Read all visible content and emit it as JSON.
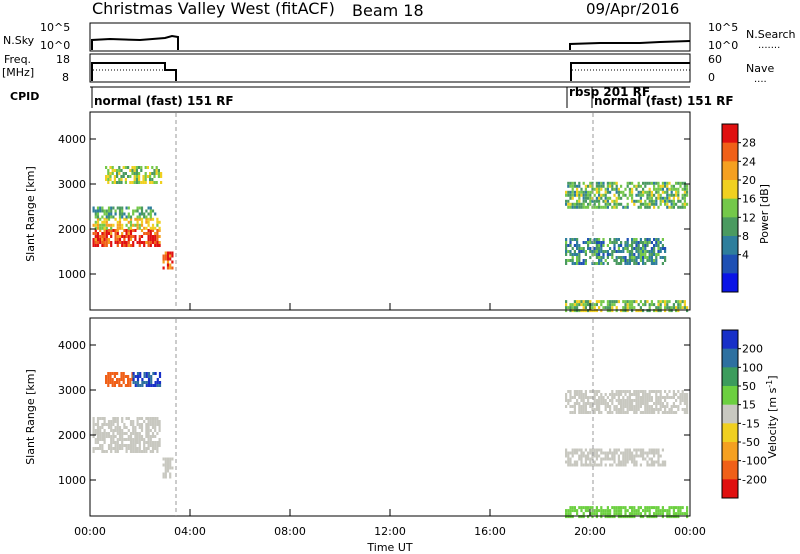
{
  "header": {
    "title": "Christmas Valley West (fitACF)",
    "beam": "Beam 18",
    "date": "09/Apr/2016"
  },
  "strip_labels": {
    "nsky": "N.Sky",
    "nsky_ticks": [
      "10^5",
      "10^0"
    ],
    "nsearch": "N.Search",
    "nsearch_ticks": [
      "10^5",
      "10^0"
    ],
    "freq_line1": "Freq.",
    "freq_line2": "[MHz]",
    "freq_ticks": [
      "18",
      "8"
    ],
    "nave": "Nave",
    "nave_ticks": [
      "60",
      "0"
    ],
    "cpid": "CPID"
  },
  "cpid_segments": [
    {
      "label": "normal (fast) 151 RF",
      "start_hour": 0
    },
    {
      "label": "rbsp 201 RF",
      "start_hour": 19
    },
    {
      "label": "normal (fast) 151 RF",
      "start_hour": 20
    }
  ],
  "chart_data": [
    {
      "type": "heatmap",
      "panel": "power",
      "ylabel": "Slant Range [km]",
      "yticks": [
        1000,
        2000,
        3000,
        4000
      ],
      "ylim": [
        200,
        4600
      ],
      "xlim": [
        0,
        24
      ],
      "colorbar_label": "Power [dB]",
      "colorbar_ticks": [
        4,
        8,
        12,
        16,
        20,
        24,
        28
      ],
      "colorbar_colors": [
        "#0a14e6",
        "#1e50b4",
        "#2e7e9c",
        "#4a9a60",
        "#74c84a",
        "#f0d020",
        "#f5a020",
        "#f06018",
        "#e01010"
      ],
      "regions": [
        {
          "t": [
            0.1,
            2.8
          ],
          "r": [
            1650,
            2000
          ],
          "value": 28
        },
        {
          "t": [
            0.1,
            2.8
          ],
          "r": [
            2000,
            2250
          ],
          "value": 18
        },
        {
          "t": [
            0.1,
            2.6
          ],
          "r": [
            2250,
            2500
          ],
          "value": 10
        },
        {
          "t": [
            0.6,
            2.8
          ],
          "r": [
            3050,
            3400
          ],
          "value": 14
        },
        {
          "t": [
            2.9,
            3.3
          ],
          "r": [
            1100,
            1500
          ],
          "value": 26
        },
        {
          "t": [
            19.0,
            23.9
          ],
          "r": [
            2500,
            3050
          ],
          "value": 12
        },
        {
          "t": [
            19.0,
            23.0
          ],
          "r": [
            1200,
            1800
          ],
          "value": 8
        },
        {
          "t": [
            19.0,
            23.9
          ],
          "r": [
            200,
            420
          ],
          "value": 14
        }
      ]
    },
    {
      "type": "heatmap",
      "panel": "velocity",
      "ylabel": "Slant Range [km]",
      "yticks": [
        1000,
        2000,
        3000,
        4000
      ],
      "ylim": [
        200,
        4600
      ],
      "xlim": [
        0,
        24
      ],
      "xticks": [
        "00:00",
        "04:00",
        "08:00",
        "12:00",
        "16:00",
        "20:00",
        "00:00"
      ],
      "xlabel": "Time UT",
      "colorbar_label": "Velocity [m s^-1]",
      "colorbar_ticks": [
        200,
        100,
        50,
        15,
        -15,
        -50,
        -100,
        -200
      ],
      "colorbar_colors": [
        "#1830c8",
        "#2e70a0",
        "#3c9c5c",
        "#6cd040",
        "#c8c8c0",
        "#f0d020",
        "#f5a020",
        "#f06018",
        "#e01010"
      ],
      "regions": [
        {
          "t": [
            0.1,
            2.8
          ],
          "r": [
            1600,
            2400
          ],
          "value": 0
        },
        {
          "t": [
            2.9,
            3.3
          ],
          "r": [
            1050,
            1500
          ],
          "value": 0
        },
        {
          "t": [
            0.6,
            1.7
          ],
          "r": [
            3100,
            3400
          ],
          "value": -150
        },
        {
          "t": [
            1.7,
            2.8
          ],
          "r": [
            3100,
            3400
          ],
          "value": 200
        },
        {
          "t": [
            19.0,
            23.9
          ],
          "r": [
            2500,
            3000
          ],
          "value": 0
        },
        {
          "t": [
            19.0,
            23.0
          ],
          "r": [
            1300,
            1700
          ],
          "value": 0
        },
        {
          "t": [
            19.0,
            23.9
          ],
          "r": [
            200,
            420
          ],
          "value": 30
        }
      ]
    }
  ]
}
